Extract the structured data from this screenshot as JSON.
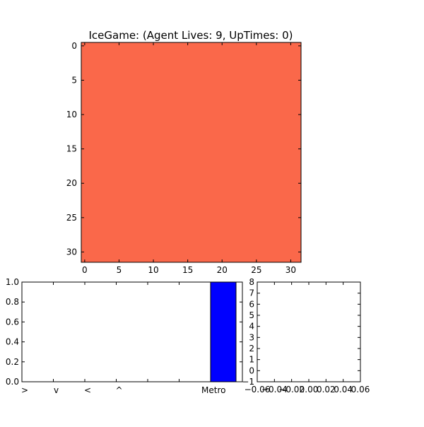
{
  "chart_data": [
    {
      "type": "heatmap",
      "title": "IceGame: (Agent Lives: 9, UpTimes: 0)",
      "x_ticks": [
        0,
        5,
        10,
        15,
        20,
        25,
        30
      ],
      "y_ticks": [
        0,
        5,
        10,
        15,
        20,
        25,
        30
      ],
      "xlim": [
        -0.5,
        31.5
      ],
      "ylim": [
        31.5,
        -0.5
      ],
      "fill_color": "#fa684a",
      "grid": false
    },
    {
      "type": "bar",
      "categories": [
        ">",
        "v",
        "<",
        "^",
        "",
        "",
        "Metro"
      ],
      "values": [
        0,
        0,
        0,
        0,
        0,
        0,
        1
      ],
      "ylim": [
        0,
        1
      ],
      "y_ticks": [
        0.0,
        0.2,
        0.4,
        0.6,
        0.8,
        1.0
      ],
      "y_tick_labels": [
        "0.0",
        "0.2",
        "0.4",
        "0.6",
        "0.8",
        "1.0"
      ],
      "bar_color": "#0000ff",
      "grid": false
    },
    {
      "type": "line",
      "series": [],
      "xlim": [
        -0.06,
        0.06
      ],
      "ylim": [
        -1,
        8
      ],
      "x_ticks": [
        -0.06,
        -0.04,
        -0.02,
        0.0,
        0.02,
        0.04,
        0.06
      ],
      "x_tick_labels": [
        "−0.06",
        "−0.04",
        "−0.02",
        "0.00",
        "0.02",
        "0.04",
        "0.06"
      ],
      "y_ticks": [
        -1,
        0,
        1,
        2,
        3,
        4,
        5,
        6,
        7,
        8
      ],
      "y_tick_labels": [
        "−1",
        "0",
        "1",
        "2",
        "3",
        "4",
        "5",
        "6",
        "7",
        "8"
      ],
      "grid": false
    }
  ]
}
